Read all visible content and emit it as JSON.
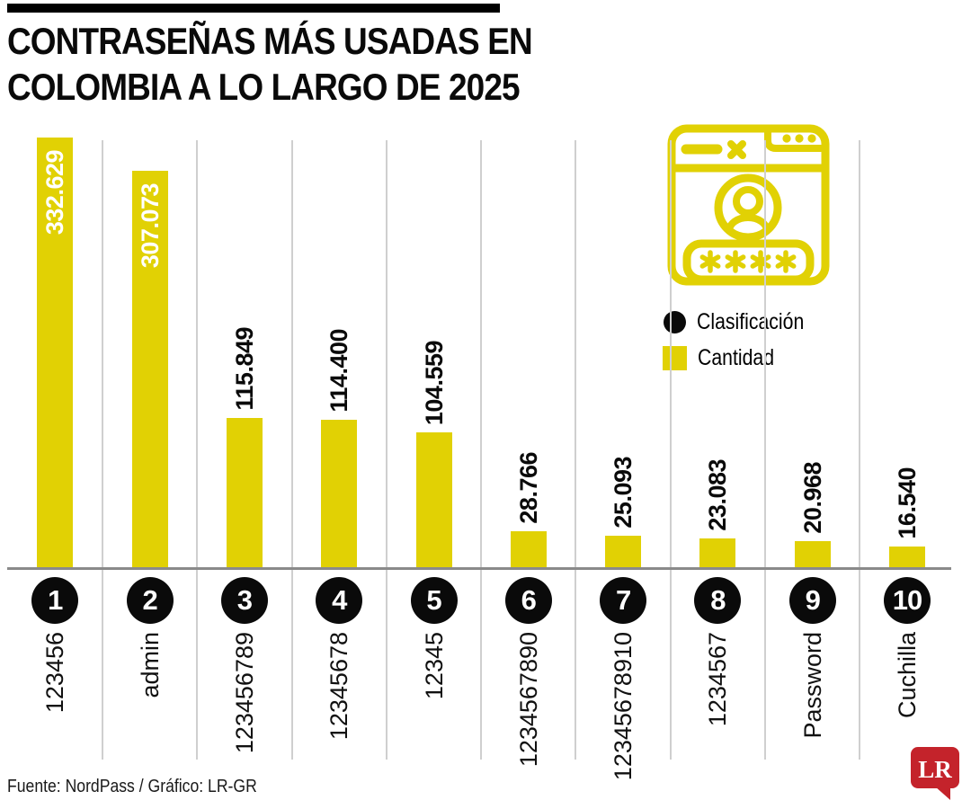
{
  "header": {
    "title_line1": "CONTRASEÑAS MÁS USADAS EN",
    "title_line2": "COLOMBIA A LO LARGO DE 2025"
  },
  "legend": {
    "items": [
      {
        "label": "Clasificación",
        "swatch": "black-circle"
      },
      {
        "label": "Cantidad",
        "swatch": "yellow-square"
      }
    ]
  },
  "icon": {
    "name": "password-browser-icon",
    "password_mask": "****"
  },
  "footer": {
    "source": "Fuente: NordPass / Gráfico: LR-GR"
  },
  "logo": {
    "text": "LR"
  },
  "colors": {
    "accent_yellow": "#E1D104",
    "black": "#0A0A0A",
    "logo_red": "#C4232B",
    "gridline": "#CFCFCF",
    "baseline": "#8A8A8A"
  },
  "chart_data": {
    "type": "bar",
    "title": "Contraseñas más usadas en Colombia a lo largo de 2025",
    "series_name": "Cantidad",
    "categories": [
      "123456",
      "admin",
      "123456789",
      "12345678",
      "12345",
      "1234567890",
      "12345678910",
      "1234567",
      "Password",
      "Cuchilla"
    ],
    "ranks": [
      "1",
      "2",
      "3",
      "4",
      "5",
      "6",
      "7",
      "8",
      "9",
      "10"
    ],
    "values": [
      332629,
      307073,
      115849,
      114400,
      104559,
      28766,
      25093,
      23083,
      20968,
      16540
    ],
    "value_labels": [
      "332.629",
      "307.073",
      "115.849",
      "114.400",
      "104.559",
      "28.766",
      "25.093",
      "23.083",
      "20.968",
      "16.540"
    ],
    "xlabel": "",
    "ylabel": "Cantidad",
    "ylim": [
      0,
      332629
    ],
    "grid": "vertical-separators",
    "legend_position": "right",
    "bar_color": "#E1D104"
  }
}
